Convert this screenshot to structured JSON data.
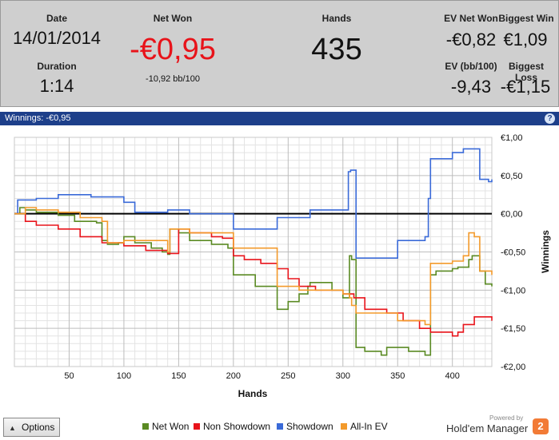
{
  "summary": {
    "date_label": "Date",
    "date_value": "14/01/2014",
    "duration_label": "Duration",
    "duration_value": "1:14",
    "net_won_label": "Net Won",
    "net_won_value": "-€0,95",
    "net_won_bb": "-10,92 bb/100",
    "hands_label": "Hands",
    "hands_value": "435",
    "ev_net_won_label": "EV Net Won",
    "ev_net_won_value": "-€0,82",
    "biggest_win_label": "Biggest Win",
    "biggest_win_value": "€1,09",
    "ev_bb_label": "EV (bb/100)",
    "ev_bb_value": "-9,43",
    "biggest_loss_label": "Biggest Loss",
    "biggest_loss_value": "-€1,15",
    "colors": {
      "negative": "#e8131a",
      "panel": "#cfcfcf"
    }
  },
  "panel": {
    "title": "Winnings: -€0,95",
    "help_icon": "help-icon",
    "help_glyph": "?"
  },
  "options": {
    "label": "Options",
    "icon": "triangle-up-icon"
  },
  "branding": {
    "powered_by": "Powered by",
    "name": "Hold'em Manager",
    "logo_text": "2"
  },
  "chart_data": {
    "type": "line",
    "xlabel": "Hands",
    "ylabel": "Winnings",
    "xlim": [
      0,
      436
    ],
    "ylim": [
      -2.0,
      1.0
    ],
    "x_ticks": [
      50,
      100,
      150,
      200,
      250,
      300,
      350,
      400
    ],
    "y_ticks": [
      {
        "v": 1.0,
        "label": "€1,00"
      },
      {
        "v": 0.5,
        "label": "€0,50"
      },
      {
        "v": 0.0,
        "label": "€0,00"
      },
      {
        "v": -0.5,
        "label": "-€0,50"
      },
      {
        "v": -1.0,
        "label": "-€1,00"
      },
      {
        "v": -1.5,
        "label": "-€1,50"
      },
      {
        "v": -2.0,
        "label": "-€2,00"
      }
    ],
    "grid": true,
    "legend_position": "bottom",
    "series": [
      {
        "name": "Net Won",
        "color": "#5a8a23",
        "x": [
          0,
          5,
          10,
          20,
          40,
          55,
          75,
          80,
          85,
          95,
          100,
          110,
          125,
          135,
          140,
          142,
          150,
          160,
          180,
          195,
          200,
          220,
          238,
          240,
          250,
          260,
          268,
          270,
          290,
          300,
          306,
          308,
          312,
          320,
          335,
          340,
          360,
          375,
          380,
          385,
          400,
          405,
          415,
          418,
          425,
          430,
          436
        ],
        "y": [
          0.0,
          0.08,
          0.05,
          0.02,
          -0.02,
          -0.1,
          -0.12,
          -0.35,
          -0.4,
          -0.38,
          -0.3,
          -0.38,
          -0.45,
          -0.5,
          -0.53,
          -0.2,
          -0.25,
          -0.35,
          -0.4,
          -0.45,
          -0.8,
          -0.95,
          -0.95,
          -1.25,
          -1.15,
          -1.05,
          -0.95,
          -0.9,
          -1.0,
          -1.1,
          -0.55,
          -0.6,
          -1.75,
          -1.8,
          -1.85,
          -1.75,
          -1.8,
          -1.85,
          -0.8,
          -0.75,
          -0.72,
          -0.7,
          -0.6,
          -0.55,
          -0.75,
          -0.92,
          -0.95
        ]
      },
      {
        "name": "Non Showdown",
        "color": "#e8131a",
        "x": [
          0,
          10,
          20,
          40,
          60,
          80,
          100,
          120,
          140,
          150,
          160,
          180,
          190,
          200,
          210,
          225,
          240,
          250,
          260,
          275,
          300,
          310,
          320,
          340,
          355,
          370,
          380,
          395,
          400,
          405,
          410,
          420,
          436
        ],
        "y": [
          0.0,
          -0.1,
          -0.15,
          -0.2,
          -0.3,
          -0.38,
          -0.42,
          -0.48,
          -0.52,
          -0.2,
          -0.25,
          -0.3,
          -0.32,
          -0.55,
          -0.6,
          -0.65,
          -0.72,
          -0.85,
          -0.95,
          -1.0,
          -1.05,
          -1.1,
          -1.25,
          -1.3,
          -1.4,
          -1.5,
          -1.55,
          -1.55,
          -1.6,
          -1.55,
          -1.45,
          -1.35,
          -1.4
        ]
      },
      {
        "name": "Showdown",
        "color": "#3a6ad8",
        "x": [
          0,
          3,
          20,
          40,
          70,
          100,
          110,
          140,
          160,
          200,
          240,
          270,
          305,
          307,
          310,
          312,
          350,
          375,
          378,
          380,
          395,
          400,
          410,
          415,
          425,
          433,
          436
        ],
        "y": [
          0.0,
          0.18,
          0.2,
          0.25,
          0.22,
          0.15,
          0.02,
          0.05,
          0.0,
          -0.2,
          -0.05,
          0.05,
          0.55,
          0.57,
          0.57,
          -0.58,
          -0.35,
          -0.3,
          0.2,
          0.72,
          0.72,
          0.8,
          0.85,
          0.85,
          0.45,
          0.42,
          0.45
        ]
      },
      {
        "name": "All-In EV",
        "color": "#f39a2b",
        "x": [
          0,
          10,
          20,
          40,
          60,
          80,
          85,
          100,
          140,
          142,
          160,
          200,
          240,
          260,
          300,
          306,
          308,
          312,
          350,
          375,
          380,
          385,
          400,
          410,
          415,
          420,
          425,
          436
        ],
        "y": [
          0.0,
          0.08,
          0.05,
          0.02,
          -0.05,
          -0.1,
          -0.38,
          -0.35,
          -0.5,
          -0.2,
          -0.25,
          -0.45,
          -0.95,
          -1.0,
          -1.05,
          -1.1,
          -1.2,
          -1.3,
          -1.4,
          -1.45,
          -0.65,
          -0.65,
          -0.62,
          -0.55,
          -0.25,
          -0.3,
          -0.75,
          -0.8
        ]
      }
    ]
  }
}
